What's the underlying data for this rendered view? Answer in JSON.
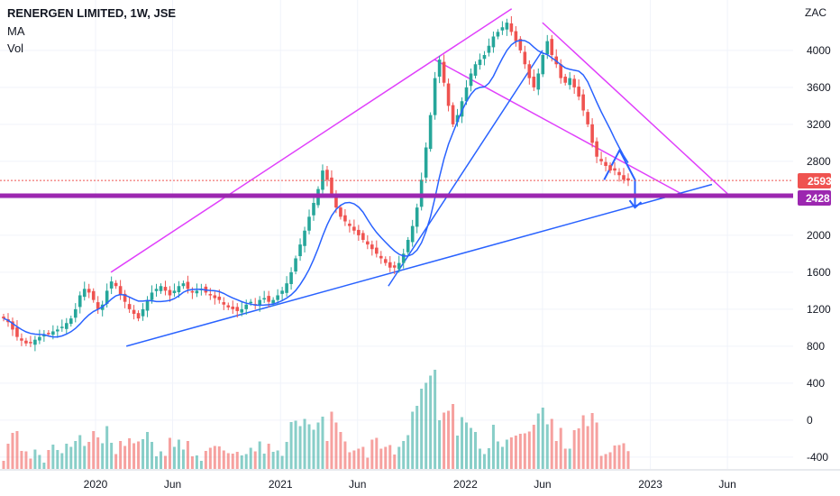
{
  "header": {
    "symbol": "RENERGEN LIMITED, 1W, JSE",
    "indicator_ma": "MA",
    "indicator_vol": "Vol"
  },
  "chart_data": {
    "type": "candlestick",
    "currency": "ZAC",
    "y_ticks": [
      4000,
      3600,
      3200,
      2800,
      2400,
      2000,
      1600,
      1200,
      800,
      400,
      0,
      -400
    ],
    "y_tick_labels": [
      "4000",
      "3600",
      "3200",
      "2800",
      "2000",
      "1600",
      "1200",
      "800",
      "400",
      "0",
      "-400"
    ],
    "ylim": [
      -450,
      4450
    ],
    "x_tick_labels": [
      "2020",
      "Jun",
      "2021",
      "Jun",
      "2022",
      "Jun",
      "2023",
      "Jun"
    ],
    "x_tick_dates": [
      "2020-01",
      "2020-06",
      "2021-01",
      "2021-06",
      "2022-01",
      "2022-06",
      "2023-01",
      "2023-06"
    ],
    "last_price": 2593,
    "horizontal_level": 2428,
    "up_color": "#26a69a",
    "down_color": "#ef5350",
    "ma_color": "#2962ff",
    "fan_color": "#e040fb",
    "trend_color": "#2962ff",
    "level_color": "#9c27b0",
    "closes": [
      1100,
      1060,
      980,
      900,
      860,
      830,
      840,
      870,
      900,
      920,
      940,
      960,
      980,
      1010,
      1050,
      1100,
      1200,
      1350,
      1420,
      1380,
      1300,
      1200,
      1250,
      1400,
      1500,
      1450,
      1350,
      1280,
      1200,
      1150,
      1100,
      1200,
      1300,
      1380,
      1420,
      1450,
      1400,
      1350,
      1400,
      1450,
      1480,
      1420,
      1380,
      1400,
      1420,
      1380,
      1350,
      1320,
      1300,
      1250,
      1220,
      1200,
      1180,
      1200,
      1250,
      1280,
      1250,
      1300,
      1320,
      1280,
      1300,
      1350,
      1400,
      1480,
      1600,
      1750,
      1900,
      2050,
      2200,
      2350,
      2500,
      2700,
      2600,
      2450,
      2300,
      2200,
      2150,
      2100,
      2050,
      2000,
      1950,
      1900,
      1850,
      1800,
      1750,
      1700,
      1650,
      1650,
      1700,
      1800,
      1950,
      2100,
      2300,
      2600,
      2950,
      3300,
      3700,
      3900,
      3650,
      3400,
      3200,
      3300,
      3450,
      3600,
      3750,
      3850,
      3900,
      3950,
      4050,
      4150,
      4200,
      4250,
      4300,
      4200,
      4100,
      4000,
      3850,
      3700,
      3600,
      3750,
      3950,
      4100,
      3950,
      3850,
      3700,
      3650,
      3700,
      3600,
      3500,
      3350,
      3200,
      3000,
      2850,
      2800,
      2750,
      2700,
      2700,
      2650,
      2600,
      2593
    ],
    "annotations": [
      {
        "type": "line",
        "name": "upper fan line",
        "from": [
          "2020-02",
          1600
        ],
        "to": [
          "2022-04",
          4450
        ]
      },
      {
        "type": "line",
        "name": "upper channel line",
        "from": [
          "2021-11",
          3900
        ],
        "to": [
          "2023-03",
          2450
        ]
      },
      {
        "type": "line",
        "name": "lower channel line",
        "from": [
          "2022-06",
          4300
        ],
        "to": [
          "2023-06",
          2450
        ]
      },
      {
        "type": "line",
        "name": "long uptrend line",
        "from": [
          "2020-03",
          800
        ],
        "to": [
          "2023-05",
          2550
        ]
      },
      {
        "type": "line",
        "name": "steep uptrend line",
        "from": [
          "2021-08",
          1450
        ],
        "to": [
          "2022-06",
          4000
        ]
      },
      {
        "type": "arrow",
        "name": "projected move",
        "points": [
          [
            "2022-10",
            2600
          ],
          [
            "2022-11",
            2920
          ],
          [
            "2022-12",
            2600
          ],
          [
            "2022-12",
            2300
          ]
        ]
      }
    ]
  }
}
